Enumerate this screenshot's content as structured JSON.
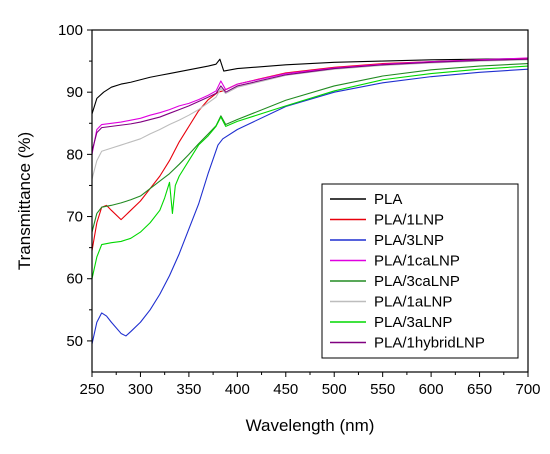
{
  "chart_data": {
    "type": "line",
    "title": "",
    "xlabel": "Wavelength (nm)",
    "ylabel": "Transmittance (%)",
    "xlim": [
      250,
      700
    ],
    "ylim": [
      45,
      100
    ],
    "x_ticks": [
      250,
      300,
      350,
      400,
      450,
      500,
      550,
      600,
      650,
      700
    ],
    "y_ticks": [
      50,
      60,
      70,
      80,
      90,
      100
    ],
    "grid": false,
    "legend_position": "bottom-right",
    "series": [
      {
        "name": "PLA",
        "color": "#000000",
        "points": [
          [
            250,
            86.5
          ],
          [
            255,
            89.0
          ],
          [
            262,
            90.0
          ],
          [
            270,
            90.8
          ],
          [
            280,
            91.3
          ],
          [
            290,
            91.6
          ],
          [
            300,
            92.0
          ],
          [
            310,
            92.4
          ],
          [
            320,
            92.7
          ],
          [
            330,
            93.0
          ],
          [
            340,
            93.3
          ],
          [
            350,
            93.6
          ],
          [
            360,
            93.9
          ],
          [
            370,
            94.2
          ],
          [
            378,
            94.5
          ],
          [
            382,
            95.3
          ],
          [
            386,
            93.4
          ],
          [
            400,
            93.8
          ],
          [
            450,
            94.4
          ],
          [
            500,
            94.8
          ],
          [
            550,
            95.0
          ],
          [
            600,
            95.2
          ],
          [
            650,
            95.3
          ],
          [
            700,
            95.4
          ]
        ]
      },
      {
        "name": "PLA/1LNP",
        "color": "#e8000b",
        "points": [
          [
            250,
            64.5
          ],
          [
            255,
            69.0
          ],
          [
            260,
            71.5
          ],
          [
            265,
            71.8
          ],
          [
            270,
            71.0
          ],
          [
            280,
            69.5
          ],
          [
            290,
            71.0
          ],
          [
            300,
            72.5
          ],
          [
            310,
            74.5
          ],
          [
            320,
            76.5
          ],
          [
            330,
            79.0
          ],
          [
            340,
            82.0
          ],
          [
            350,
            84.5
          ],
          [
            360,
            87.0
          ],
          [
            370,
            88.8
          ],
          [
            380,
            90.0
          ],
          [
            385,
            90.2
          ],
          [
            400,
            91.3
          ],
          [
            450,
            93.1
          ],
          [
            500,
            94.0
          ],
          [
            550,
            94.6
          ],
          [
            600,
            94.9
          ],
          [
            650,
            95.2
          ],
          [
            700,
            95.4
          ]
        ]
      },
      {
        "name": "PLA/3LNP",
        "color": "#1f2fd0",
        "points": [
          [
            250,
            49.5
          ],
          [
            255,
            53.0
          ],
          [
            260,
            54.5
          ],
          [
            265,
            54.0
          ],
          [
            270,
            53.0
          ],
          [
            280,
            51.2
          ],
          [
            285,
            50.8
          ],
          [
            290,
            51.5
          ],
          [
            300,
            53.0
          ],
          [
            310,
            55.0
          ],
          [
            320,
            57.5
          ],
          [
            330,
            60.5
          ],
          [
            340,
            64.0
          ],
          [
            350,
            68.0
          ],
          [
            360,
            72.0
          ],
          [
            370,
            77.0
          ],
          [
            380,
            81.5
          ],
          [
            385,
            82.5
          ],
          [
            400,
            84.0
          ],
          [
            450,
            87.7
          ],
          [
            500,
            90.0
          ],
          [
            550,
            91.5
          ],
          [
            600,
            92.5
          ],
          [
            650,
            93.2
          ],
          [
            700,
            93.7
          ]
        ]
      },
      {
        "name": "PLA/1caLNP",
        "color": "#e000e0",
        "points": [
          [
            250,
            80.0
          ],
          [
            255,
            84.0
          ],
          [
            260,
            84.8
          ],
          [
            270,
            85.0
          ],
          [
            280,
            85.2
          ],
          [
            290,
            85.5
          ],
          [
            300,
            85.8
          ],
          [
            310,
            86.3
          ],
          [
            320,
            86.7
          ],
          [
            330,
            87.2
          ],
          [
            340,
            87.8
          ],
          [
            350,
            88.2
          ],
          [
            360,
            88.8
          ],
          [
            370,
            89.5
          ],
          [
            378,
            90.2
          ],
          [
            383,
            91.8
          ],
          [
            388,
            90.4
          ],
          [
            400,
            91.3
          ],
          [
            450,
            93.0
          ],
          [
            500,
            93.9
          ],
          [
            550,
            94.5
          ],
          [
            600,
            94.9
          ],
          [
            650,
            95.2
          ],
          [
            700,
            95.5
          ]
        ]
      },
      {
        "name": "PLA/3caLNP",
        "color": "#228b22",
        "points": [
          [
            250,
            67.5
          ],
          [
            255,
            70.5
          ],
          [
            260,
            71.5
          ],
          [
            270,
            71.8
          ],
          [
            280,
            72.2
          ],
          [
            290,
            72.7
          ],
          [
            300,
            73.3
          ],
          [
            310,
            74.5
          ],
          [
            320,
            75.7
          ],
          [
            330,
            76.9
          ],
          [
            340,
            78.4
          ],
          [
            350,
            80.0
          ],
          [
            360,
            81.7
          ],
          [
            370,
            83.3
          ],
          [
            378,
            84.6
          ],
          [
            383,
            86.2
          ],
          [
            388,
            84.8
          ],
          [
            400,
            85.6
          ],
          [
            450,
            88.7
          ],
          [
            500,
            91.0
          ],
          [
            550,
            92.6
          ],
          [
            600,
            93.6
          ],
          [
            650,
            94.2
          ],
          [
            700,
            94.6
          ]
        ]
      },
      {
        "name": "PLA/1aLNP",
        "color": "#bdbdbd",
        "points": [
          [
            250,
            76.0
          ],
          [
            255,
            79.0
          ],
          [
            260,
            80.5
          ],
          [
            270,
            81.0
          ],
          [
            280,
            81.5
          ],
          [
            290,
            82.0
          ],
          [
            300,
            82.5
          ],
          [
            310,
            83.3
          ],
          [
            320,
            84.0
          ],
          [
            330,
            84.8
          ],
          [
            340,
            85.5
          ],
          [
            350,
            86.3
          ],
          [
            360,
            87.2
          ],
          [
            370,
            88.3
          ],
          [
            378,
            89.2
          ],
          [
            383,
            90.6
          ],
          [
            388,
            89.8
          ],
          [
            400,
            90.8
          ],
          [
            450,
            92.7
          ],
          [
            500,
            93.7
          ],
          [
            550,
            94.3
          ],
          [
            600,
            94.7
          ],
          [
            650,
            95.0
          ],
          [
            700,
            95.2
          ]
        ]
      },
      {
        "name": "PLA/3aLNP",
        "color": "#00d800",
        "points": [
          [
            250,
            60.0
          ],
          [
            255,
            63.5
          ],
          [
            260,
            65.5
          ],
          [
            270,
            65.8
          ],
          [
            280,
            66.0
          ],
          [
            290,
            66.5
          ],
          [
            300,
            67.5
          ],
          [
            310,
            69.0
          ],
          [
            320,
            71.0
          ],
          [
            325,
            73.0
          ],
          [
            330,
            75.5
          ],
          [
            333,
            70.5
          ],
          [
            336,
            75.0
          ],
          [
            340,
            76.5
          ],
          [
            350,
            79.0
          ],
          [
            360,
            81.5
          ],
          [
            370,
            83.0
          ],
          [
            378,
            84.5
          ],
          [
            383,
            86.0
          ],
          [
            388,
            84.5
          ],
          [
            400,
            85.3
          ],
          [
            450,
            87.8
          ],
          [
            500,
            90.2
          ],
          [
            550,
            92.0
          ],
          [
            600,
            93.0
          ],
          [
            650,
            93.7
          ],
          [
            700,
            94.2
          ]
        ]
      },
      {
        "name": "PLA/1hybridLNP",
        "color": "#800080",
        "points": [
          [
            250,
            80.5
          ],
          [
            255,
            83.5
          ],
          [
            260,
            84.3
          ],
          [
            270,
            84.5
          ],
          [
            280,
            84.7
          ],
          [
            290,
            84.9
          ],
          [
            300,
            85.2
          ],
          [
            310,
            85.6
          ],
          [
            320,
            86.0
          ],
          [
            330,
            86.6
          ],
          [
            340,
            87.2
          ],
          [
            350,
            87.8
          ],
          [
            360,
            88.5
          ],
          [
            370,
            89.2
          ],
          [
            378,
            89.8
          ],
          [
            383,
            91.0
          ],
          [
            388,
            90.0
          ],
          [
            400,
            91.0
          ],
          [
            450,
            92.8
          ],
          [
            500,
            93.8
          ],
          [
            550,
            94.4
          ],
          [
            600,
            94.8
          ],
          [
            650,
            95.1
          ],
          [
            700,
            95.3
          ]
        ]
      }
    ]
  }
}
